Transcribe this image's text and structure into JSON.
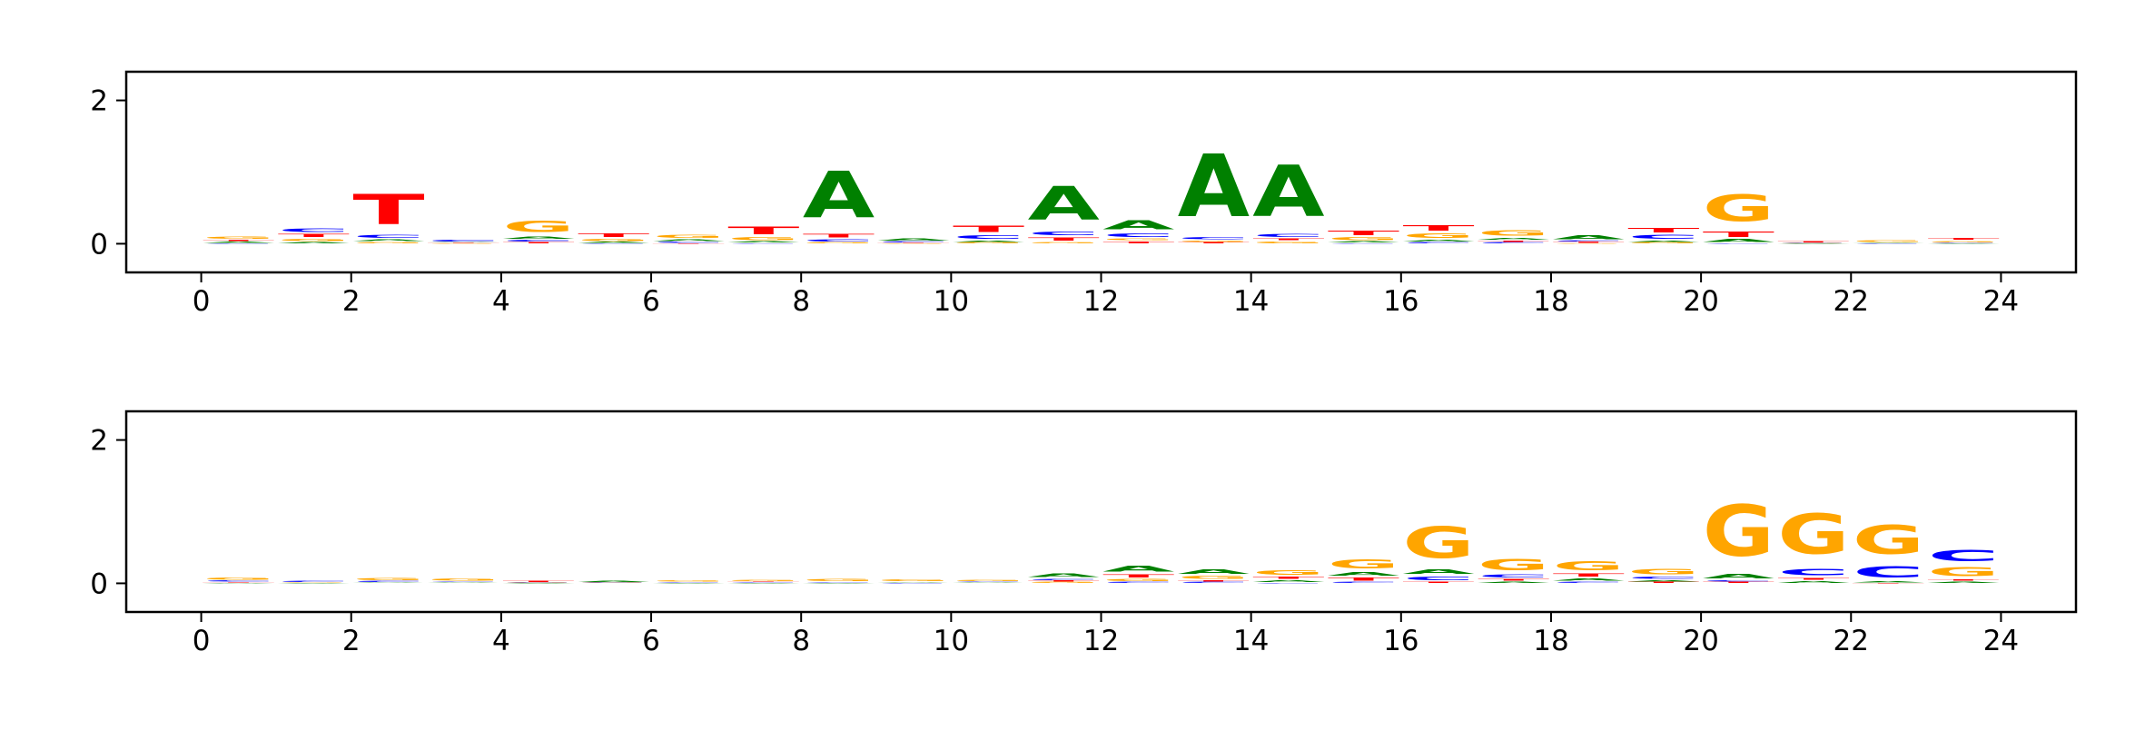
{
  "chart_data": {
    "type": "sequence-logo",
    "letter_colors": {
      "A": "#008000",
      "C": "#0000ff",
      "G": "#ffa500",
      "T": "#ff0000"
    },
    "panels": [
      {
        "xlim": [
          -1,
          25
        ],
        "ylim": [
          -0.4,
          2.4
        ],
        "xticks": [
          0,
          2,
          4,
          6,
          8,
          10,
          12,
          14,
          16,
          18,
          20,
          22,
          24
        ],
        "yticks": [
          0,
          2
        ],
        "stacks": [
          {
            "A": 0.02,
            "T": 0.03,
            "G": 0.05,
            "C": 0.01
          },
          {
            "A": 0.03,
            "G": 0.05,
            "T": 0.07,
            "C": 0.08
          },
          {
            "G": 0.03,
            "A": 0.04,
            "C": 0.07,
            "T": 0.68
          },
          {
            "T": 0.01,
            "A": 0.01,
            "C": 0.04,
            "G": 0.005
          },
          {
            "T": 0.02,
            "C": 0.04,
            "A": 0.05,
            "G": 0.25
          },
          {
            "C": 0.01,
            "A": 0.02,
            "G": 0.05,
            "T": 0.08
          },
          {
            "T": 0.01,
            "C": 0.02,
            "A": 0.04,
            "G": 0.07
          },
          {
            "C": 0.01,
            "A": 0.03,
            "G": 0.06,
            "T": 0.17
          },
          {
            "G": 0.02,
            "C": 0.05,
            "T": 0.08,
            "A": 1.05
          },
          {
            "T": 0.01,
            "C": 0.02,
            "A": 0.05,
            "G": 0.005
          },
          {
            "G": 0.02,
            "A": 0.03,
            "C": 0.08,
            "T": 0.15
          },
          {
            "G": 0.03,
            "T": 0.07,
            "C": 0.08,
            "A": 0.75
          },
          {
            "T": 0.04,
            "G": 0.04,
            "C": 0.08,
            "A": 0.2
          },
          {
            "T": 0.02,
            "G": 0.03,
            "C": 0.05,
            "A": 1.4
          },
          {
            "G": 0.04,
            "T": 0.04,
            "C": 0.07,
            "A": 1.15
          },
          {
            "C": 0.01,
            "A": 0.03,
            "G": 0.06,
            "T": 0.1
          },
          {
            "C": 0.02,
            "A": 0.04,
            "G": 0.1,
            "T": 0.12
          },
          {
            "C": 0.02,
            "T": 0.03,
            "A": 0.04,
            "G": 0.12
          },
          {
            "T": 0.02,
            "C": 0.02,
            "A": 0.09,
            "G": 0.005
          },
          {
            "G": 0.02,
            "A": 0.03,
            "C": 0.09,
            "T": 0.1
          },
          {
            "C": 0.01,
            "A": 0.06,
            "T": 0.12,
            "G": 0.6
          },
          {
            "T": 0.03,
            "A": 0.005,
            "C": 0.005,
            "G": 0.005
          },
          {
            "C": 0.005,
            "G": 0.04,
            "A": 0.005,
            "T": 0.005
          },
          {
            "C": 0.01,
            "G": 0.03,
            "T": 0.04,
            "A": 0.005
          }
        ]
      },
      {
        "xlim": [
          -1,
          25
        ],
        "ylim": [
          -0.4,
          2.4
        ],
        "xticks": [
          0,
          2,
          4,
          6,
          8,
          10,
          12,
          14,
          16,
          18,
          20,
          22,
          24
        ],
        "yticks": [
          0,
          2
        ],
        "stacks": [
          {
            "A": 0.01,
            "T": 0.01,
            "C": 0.02,
            "G": 0.05
          },
          {
            "A": 0.005,
            "C": 0.03,
            "G": 0.005,
            "T": 0.005
          },
          {
            "T": 0.005,
            "A": 0.01,
            "C": 0.02,
            "G": 0.05
          },
          {
            "T": 0.005,
            "A": 0.01,
            "C": 0.01,
            "G": 0.05
          },
          {
            "A": 0.005,
            "T": 0.03,
            "C": 0.005,
            "G": 0.005
          },
          {
            "A": 0.02,
            "T": 0.005,
            "C": 0.005,
            "G": 0.005
          },
          {
            "A": 0.005,
            "C": 0.01,
            "G": 0.03,
            "T": 0.005
          },
          {
            "A": 0.005,
            "C": 0.01,
            "T": 0.01,
            "G": 0.03
          },
          {
            "A": 0.005,
            "T": 0.005,
            "C": 0.01,
            "G": 0.05
          },
          {
            "A": 0.01,
            "G": 0.04,
            "C": 0.005,
            "T": 0.005
          },
          {
            "A": 0.01,
            "C": 0.01,
            "G": 0.03,
            "T": 0.005
          },
          {
            "G": 0.02,
            "T": 0.02,
            "C": 0.03,
            "A": 0.08
          },
          {
            "C": 0.02,
            "G": 0.05,
            "T": 0.07,
            "A": 0.13
          },
          {
            "C": 0.02,
            "T": 0.03,
            "G": 0.06,
            "A": 0.1
          },
          {
            "C": 0.01,
            "A": 0.04,
            "T": 0.05,
            "G": 0.1
          },
          {
            "C": 0.02,
            "T": 0.07,
            "A": 0.08,
            "G": 0.2
          },
          {
            "T": 0.03,
            "C": 0.08,
            "A": 0.1,
            "G": 0.7
          },
          {
            "A": 0.03,
            "T": 0.04,
            "C": 0.06,
            "G": 0.25
          },
          {
            "C": 0.03,
            "A": 0.05,
            "T": 0.06,
            "G": 0.2
          },
          {
            "T": 0.02,
            "A": 0.03,
            "C": 0.05,
            "G": 0.12
          },
          {
            "T": 0.02,
            "C": 0.03,
            "A": 0.1,
            "G": 1.15
          },
          {
            "A": 0.04,
            "T": 0.04,
            "C": 0.15,
            "G": 0.9
          },
          {
            "T": 0.01,
            "A": 0.02,
            "C": 0.25,
            "G": 0.65
          },
          {
            "A": 0.03,
            "T": 0.03,
            "G": 0.2,
            "C": 0.25
          }
        ]
      }
    ]
  }
}
